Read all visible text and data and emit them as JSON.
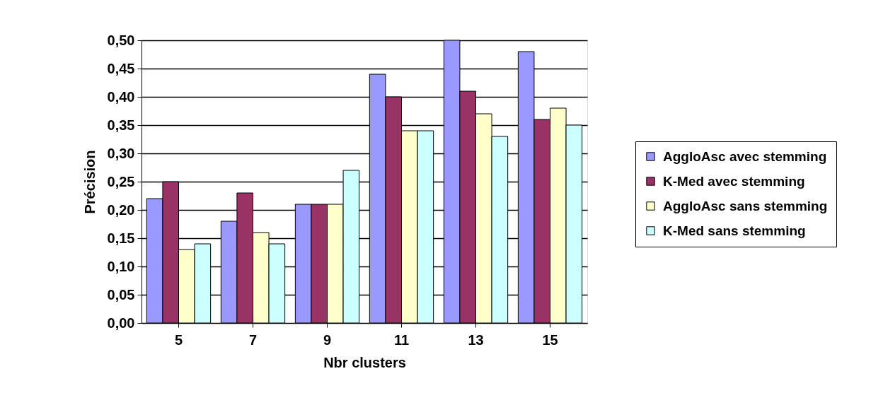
{
  "chart_data": {
    "type": "bar",
    "xlabel": "Nbr clusters",
    "ylabel": "Précision",
    "categories": [
      "5",
      "7",
      "9",
      "11",
      "13",
      "15"
    ],
    "series": [
      {
        "name": "AggloAsc avec stemming",
        "color": "#9999ff",
        "values": [
          0.22,
          0.18,
          0.21,
          0.44,
          0.5,
          0.48
        ]
      },
      {
        "name": "K-Med avec stemming",
        "color": "#993366",
        "values": [
          0.25,
          0.23,
          0.21,
          0.4,
          0.41,
          0.36
        ]
      },
      {
        "name": "AggloAsc sans stemming",
        "color": "#ffffcc",
        "values": [
          0.13,
          0.16,
          0.21,
          0.34,
          0.37,
          0.38
        ]
      },
      {
        "name": "K-Med sans stemming",
        "color": "#ccffff",
        "values": [
          0.14,
          0.14,
          0.27,
          0.34,
          0.33,
          0.35
        ]
      }
    ],
    "ylim": [
      0,
      0.5
    ],
    "yticks": [
      {
        "value": 0,
        "label": "0,00"
      },
      {
        "value": 0.05,
        "label": "0,05"
      },
      {
        "value": 0.1,
        "label": "0,10"
      },
      {
        "value": 0.15,
        "label": "0,15"
      },
      {
        "value": 0.2,
        "label": "0,20"
      },
      {
        "value": 0.25,
        "label": "0,25"
      },
      {
        "value": 0.3,
        "label": "0,30"
      },
      {
        "value": 0.35,
        "label": "0,35"
      },
      {
        "value": 0.4,
        "label": "0,40"
      },
      {
        "value": 0.45,
        "label": "0,45"
      },
      {
        "value": 0.5,
        "label": "0,50"
      }
    ],
    "grid": "y",
    "legend": "right"
  }
}
